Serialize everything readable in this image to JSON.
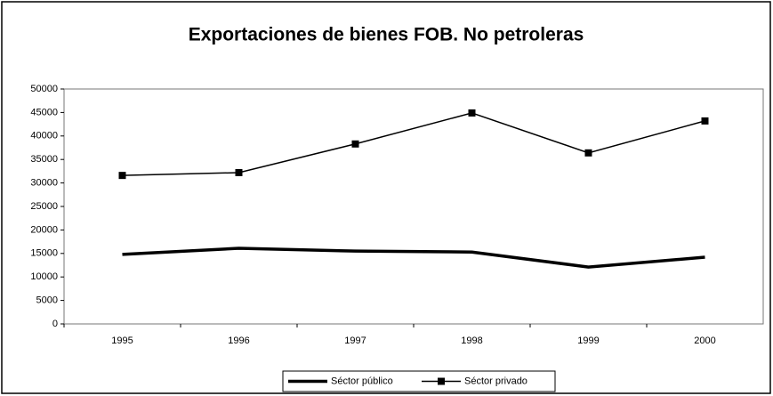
{
  "chart_data": {
    "type": "line",
    "title": "Exportaciones de bienes FOB. No petroleras",
    "categories": [
      "1995",
      "1996",
      "1997",
      "1998",
      "1999",
      "2000"
    ],
    "series": [
      {
        "name": "Séctor público",
        "color": "#000000",
        "values": [
          14800,
          16100,
          15500,
          15300,
          12100,
          14200
        ]
      },
      {
        "name": "Séctor privado",
        "color": "#000000",
        "marker": "square",
        "values": [
          31600,
          32200,
          38300,
          44900,
          36400,
          43200
        ]
      }
    ],
    "ylim": [
      0,
      50000
    ],
    "yticks": [
      0,
      5000,
      10000,
      15000,
      20000,
      25000,
      30000,
      35000,
      40000,
      45000,
      50000
    ],
    "grid": false,
    "legend": "bottom"
  }
}
